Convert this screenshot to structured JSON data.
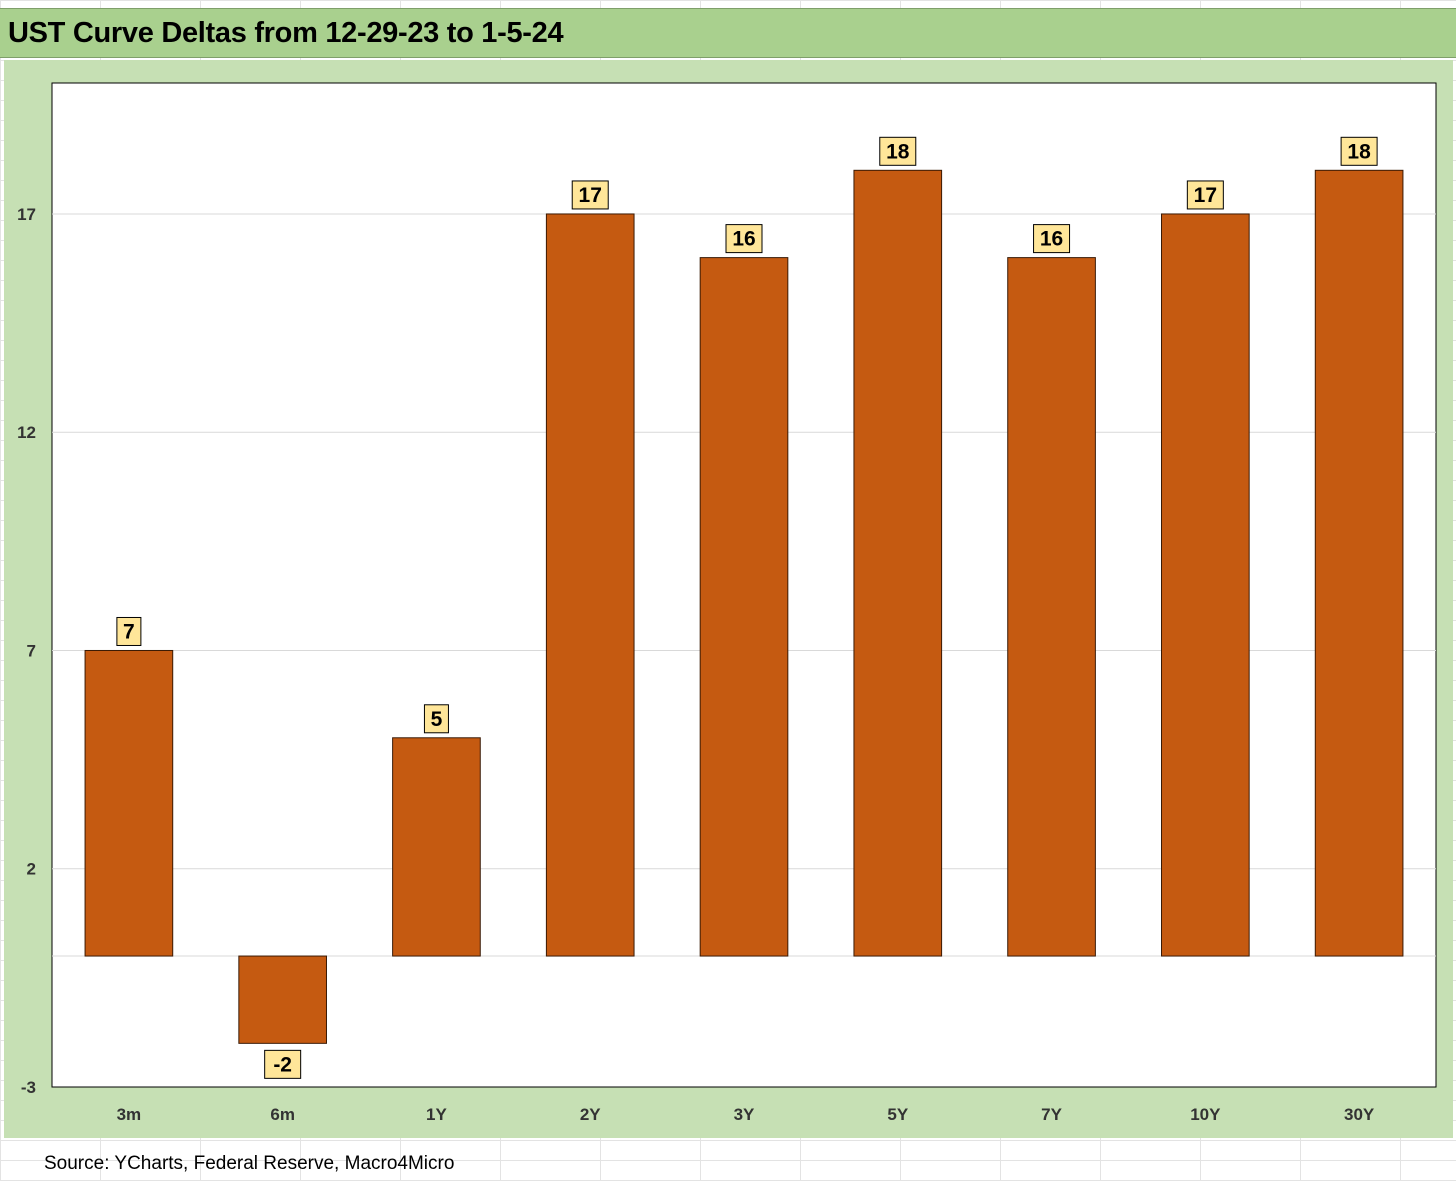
{
  "title": "UST Curve Deltas from 12-29-23 to 1-5-24",
  "source": "Source: YCharts, Federal Reserve, Macro4Micro",
  "colors": {
    "bar": "#c55a11",
    "bar_border": "#3a1a05",
    "label_box": "#ffe699",
    "header_bg": "#a9d08e",
    "chart_bg": "#c6e0b4",
    "plot_bg": "#ffffff",
    "gridline": "#d9d9d9"
  },
  "chart_data": {
    "type": "bar",
    "title": "UST Curve Deltas from 12-29-23 to 1-5-24",
    "xlabel": "",
    "ylabel": "",
    "categories": [
      "3m",
      "6m",
      "1Y",
      "2Y",
      "3Y",
      "5Y",
      "7Y",
      "10Y",
      "30Y"
    ],
    "values": [
      7,
      -2,
      5,
      17,
      16,
      18,
      16,
      17,
      18
    ],
    "data_labels": [
      "7",
      "-2",
      "5",
      "17",
      "16",
      "18",
      "16",
      "17",
      "18"
    ],
    "ylim": [
      -3,
      20
    ],
    "yticks": [
      -3,
      2,
      7,
      12,
      17
    ],
    "ytick_labels": [
      "-3",
      "2",
      "7",
      "12",
      "17"
    ],
    "grid": true,
    "legend": "none"
  }
}
